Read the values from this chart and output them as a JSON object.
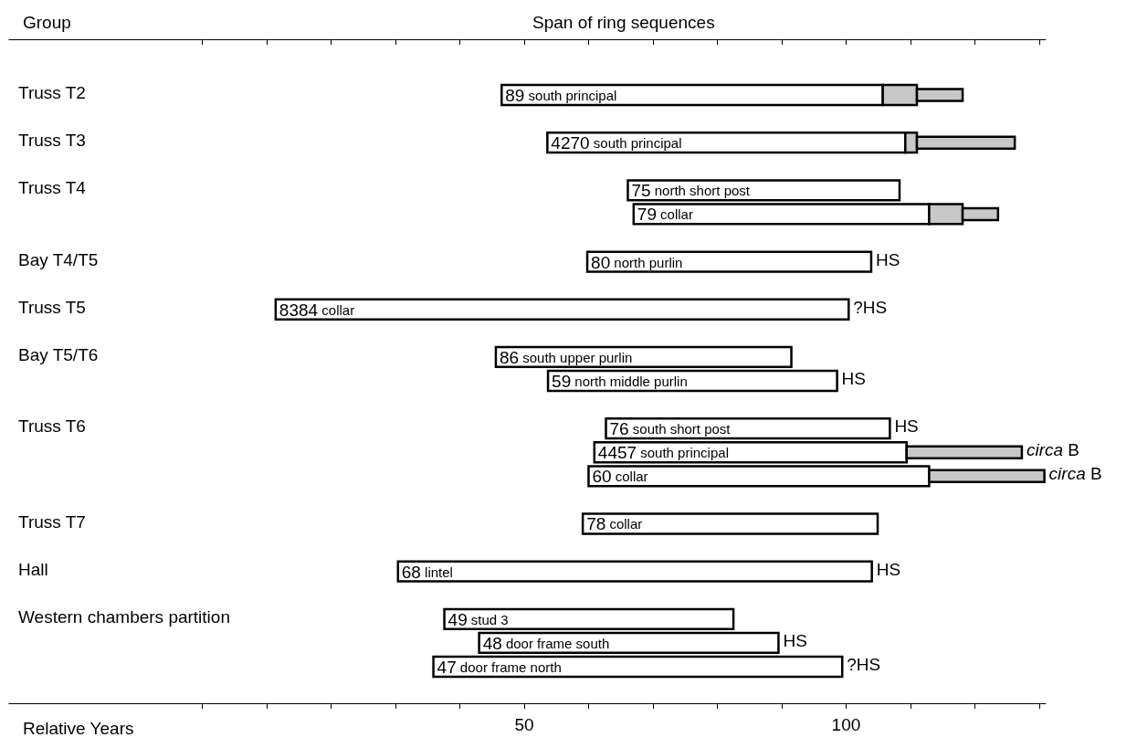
{
  "chart_data": {
    "type": "bar",
    "orientation": "horizontal",
    "title": "Span of ring sequences",
    "ylabel": "Group",
    "xlabel": "Relative Years",
    "categories": [
      "89 south principal",
      null,
      "4270 south principal",
      null,
      "75 north short post",
      "79 collar",
      null,
      "80 north purlin",
      null,
      "8384 collar",
      null,
      "86 south upper purlin",
      "59 north middle purlin",
      null,
      "76 south short post",
      "4457 south principal",
      "60 collar",
      null,
      "78 collar",
      null,
      "68 lintel",
      null,
      "49 stud 3",
      "48 door frame south",
      "47 door frame north"
    ],
    "series": [
      {
        "color": "#ffffff",
        "base": [
          46.5,
          null,
          53.6,
          null,
          66.1,
          67.0,
          null,
          59.8,
          null,
          11.4,
          null,
          45.6,
          53.7,
          null,
          62.7,
          60.9,
          60.0,
          null,
          59.1,
          null,
          30.4,
          null,
          37.6,
          43.0,
          35.9
        ],
        "values": [
          59.2,
          null,
          55.6,
          null,
          42.2,
          45.9,
          null,
          44.1,
          null,
          89.0,
          null,
          45.9,
          44.9,
          null,
          44.1,
          48.5,
          52.9,
          null,
          45.8,
          null,
          73.6,
          null,
          44.9,
          46.5,
          63.5
        ]
      },
      {
        "color": "#c8c8c8",
        "base": [
          105.7,
          null,
          109.2,
          null,
          null,
          112.9,
          null,
          null,
          null,
          null,
          null,
          null,
          null,
          null,
          null,
          null,
          null,
          null,
          null,
          null,
          null,
          null,
          null,
          null,
          null
        ],
        "values": [
          5.3,
          null,
          1.8,
          null,
          null,
          5.2,
          null,
          null,
          null,
          null,
          null,
          null,
          null,
          null,
          null,
          null,
          null,
          null,
          null,
          null,
          null,
          null,
          null,
          null,
          null
        ]
      },
      {
        "color": "#c8c8c8",
        "base": [
          111.0,
          null,
          111.0,
          null,
          null,
          118.1,
          null,
          null,
          null,
          null,
          null,
          null,
          null,
          null,
          null,
          109.4,
          112.9,
          null,
          null,
          null,
          null,
          null,
          null,
          null,
          null
        ],
        "values": [
          7.1,
          null,
          15.2,
          null,
          null,
          5.5,
          null,
          null,
          null,
          null,
          null,
          null,
          null,
          null,
          null,
          17.9,
          17.9,
          null,
          null,
          null,
          null,
          null,
          null,
          null,
          null
        ]
      }
    ],
    "xlim": [
      -30,
      131
    ],
    "xticks": [
      50,
      100
    ],
    "grid": false,
    "annotations": [
      "Truss T2",
      "Truss T3",
      "Truss T4",
      "Bay T4/T5",
      "Truss T5",
      "Bay T5/T6",
      "Truss T6",
      "Truss T7",
      "Hall",
      "Western chambers partition",
      {
        "text": "HS",
        "x": 103.9,
        "y": "80 north purlin"
      },
      {
        "text": "?HS",
        "x": 100.4,
        "y": "8384 collar"
      },
      {
        "text": "HS",
        "x": 98.6,
        "y": "59 north middle purlin"
      },
      {
        "text": "HS",
        "x": 106.8,
        "y": "76 south short post"
      },
      {
        "text": "circa B",
        "x": 127.3,
        "y": "4457 south principal"
      },
      {
        "text": "circa B",
        "x": 130.8,
        "y": "60 collar"
      },
      {
        "text": "HS",
        "x": 104.0,
        "y": "68 lintel"
      },
      {
        "text": "HS",
        "x": 89.5,
        "y": "48 door frame south"
      },
      {
        "text": "?HS",
        "x": 99.4,
        "y": "47 door frame north"
      }
    ]
  }
}
